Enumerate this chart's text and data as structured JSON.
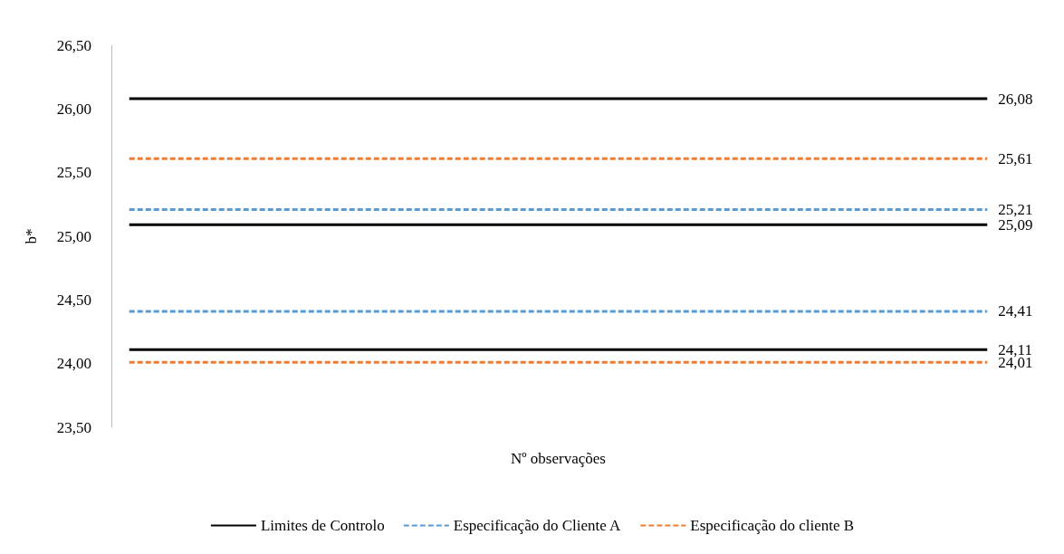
{
  "chart_data": {
    "type": "line",
    "xlabel": "Nº observações",
    "ylabel": "b*",
    "categories": [
      null,
      null,
      null,
      null,
      null,
      null,
      null,
      null,
      null,
      null,
      null,
      null,
      null,
      null,
      null,
      null,
      null,
      null,
      null,
      null,
      null,
      null,
      null,
      null,
      null
    ],
    "ylim": [
      23.5,
      26.5
    ],
    "yticks": [
      {
        "value": 23.5,
        "label": "23,50"
      },
      {
        "value": 24.0,
        "label": "24,00"
      },
      {
        "value": 24.5,
        "label": "24,50"
      },
      {
        "value": 25.0,
        "label": "25,00"
      },
      {
        "value": 25.5,
        "label": "25,50"
      },
      {
        "value": 26.0,
        "label": "26,00"
      },
      {
        "value": 26.5,
        "label": "26,50"
      }
    ],
    "grid": false,
    "legend": "bottom",
    "marker": "none",
    "series": [
      {
        "name": "Limites de Controlo",
        "color": "#000000",
        "line_style": "solid",
        "values": [
          26.08,
          26.08,
          26.08,
          26.08,
          26.08,
          26.08,
          26.08,
          26.08,
          26.08,
          26.08,
          26.08,
          26.08,
          26.08,
          26.08,
          26.08,
          26.08,
          26.08,
          26.08,
          26.08,
          26.08,
          26.08,
          26.08,
          26.08,
          26.08,
          26.08
        ],
        "value_labels": [
          null,
          null,
          null,
          null,
          null,
          null,
          null,
          null,
          null,
          null,
          null,
          null,
          null,
          null,
          null,
          null,
          null,
          null,
          null,
          null,
          null,
          null,
          null,
          null,
          "26,08"
        ]
      },
      {
        "color": "#000000",
        "line_style": "solid",
        "values": [
          25.09,
          25.09,
          25.09,
          25.09,
          25.09,
          25.09,
          25.09,
          25.09,
          25.09,
          25.09,
          25.09,
          25.09,
          25.09,
          25.09,
          25.09,
          25.09,
          25.09,
          25.09,
          25.09,
          25.09,
          25.09,
          25.09,
          25.09,
          25.09,
          25.09
        ],
        "value_labels": [
          null,
          null,
          null,
          null,
          null,
          null,
          null,
          null,
          null,
          null,
          null,
          null,
          null,
          null,
          null,
          null,
          null,
          null,
          null,
          null,
          null,
          null,
          null,
          null,
          "25,09"
        ]
      },
      {
        "color": "#000000",
        "line_style": "solid",
        "values": [
          24.11,
          24.11,
          24.11,
          24.11,
          24.11,
          24.11,
          24.11,
          24.11,
          24.11,
          24.11,
          24.11,
          24.11,
          24.11,
          24.11,
          24.11,
          24.11,
          24.11,
          24.11,
          24.11,
          24.11,
          24.11,
          24.11,
          24.11,
          24.11,
          24.11
        ],
        "value_labels": [
          null,
          null,
          null,
          null,
          null,
          null,
          null,
          null,
          null,
          null,
          null,
          null,
          null,
          null,
          null,
          null,
          null,
          null,
          null,
          null,
          null,
          null,
          null,
          null,
          "24,11"
        ]
      },
      {
        "name": "Especificação do Cliente A",
        "color": "#5b9bd5",
        "line_style": "dashed",
        "values": [
          25.21,
          25.21,
          25.21,
          25.21,
          25.21,
          25.21,
          25.21,
          25.21,
          25.21,
          25.21,
          25.21,
          25.21,
          25.21,
          25.21,
          25.21,
          25.21,
          25.21,
          25.21,
          25.21,
          25.21,
          25.21,
          25.21,
          25.21,
          25.21,
          25.21
        ],
        "value_labels": [
          null,
          null,
          null,
          null,
          null,
          null,
          null,
          null,
          null,
          null,
          null,
          null,
          null,
          null,
          null,
          null,
          null,
          null,
          null,
          null,
          null,
          null,
          null,
          null,
          "25,21"
        ]
      },
      {
        "color": "#5b9bd5",
        "line_style": "dashed",
        "values": [
          24.41,
          24.41,
          24.41,
          24.41,
          24.41,
          24.41,
          24.41,
          24.41,
          24.41,
          24.41,
          24.41,
          24.41,
          24.41,
          24.41,
          24.41,
          24.41,
          24.41,
          24.41,
          24.41,
          24.41,
          24.41,
          24.41,
          24.41,
          24.41,
          24.41
        ],
        "value_labels": [
          null,
          null,
          null,
          null,
          null,
          null,
          null,
          null,
          null,
          null,
          null,
          null,
          null,
          null,
          null,
          null,
          null,
          null,
          null,
          null,
          null,
          null,
          null,
          null,
          "24,41"
        ]
      },
      {
        "name": "Especificação do cliente B",
        "color": "#ed7d31",
        "line_style": "dashed",
        "values": [
          25.61,
          25.61,
          25.61,
          25.61,
          25.61,
          25.61,
          25.61,
          25.61,
          25.61,
          25.61,
          25.61,
          25.61,
          25.61,
          25.61,
          25.61,
          25.61,
          25.61,
          25.61,
          25.61,
          25.61,
          25.61,
          25.61,
          25.61,
          25.61,
          25.61
        ],
        "value_labels": [
          null,
          null,
          null,
          null,
          null,
          null,
          null,
          null,
          null,
          null,
          null,
          null,
          null,
          null,
          null,
          null,
          null,
          null,
          null,
          null,
          null,
          null,
          null,
          null,
          "25,61"
        ]
      },
      {
        "color": "#ed7d31",
        "line_style": "dashed",
        "values": [
          24.01,
          24.01,
          24.01,
          24.01,
          24.01,
          24.01,
          24.01,
          24.01,
          24.01,
          24.01,
          24.01,
          24.01,
          24.01,
          24.01,
          24.01,
          24.01,
          24.01,
          24.01,
          24.01,
          24.01,
          24.01,
          24.01,
          24.01,
          24.01,
          24.01
        ],
        "value_labels": [
          null,
          null,
          null,
          null,
          null,
          null,
          null,
          null,
          null,
          null,
          null,
          null,
          null,
          null,
          null,
          null,
          null,
          null,
          null,
          null,
          null,
          null,
          null,
          null,
          "24,01"
        ]
      }
    ]
  }
}
